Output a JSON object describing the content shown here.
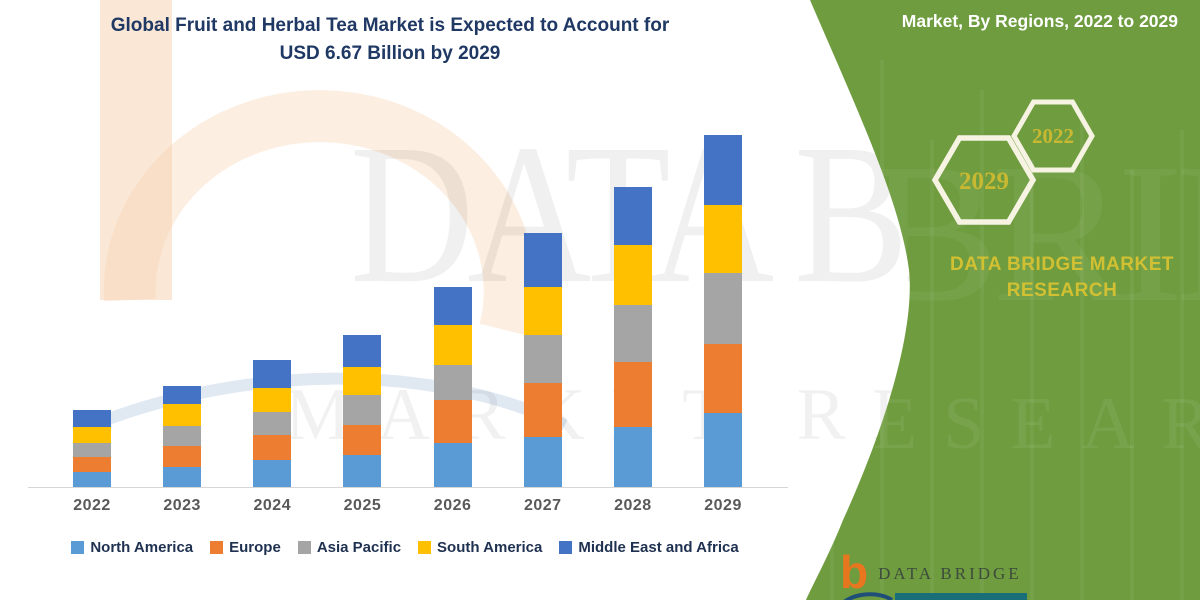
{
  "header": {
    "title_line1": "Global Fruit and Herbal Tea Market is Expected to Account for",
    "title_line2": "USD 6.67 Billion by 2029"
  },
  "side_panel": {
    "heading": "Market, By Regions, 2022 to 2029",
    "hexagons": [
      {
        "label": "2022"
      },
      {
        "label": "2029"
      }
    ],
    "brand": "DATA BRIDGE MARKET RESEARCH",
    "colors": {
      "green": "#6E9C3F",
      "gold": "#D2C033",
      "hex_border": "#F6F3E3",
      "hex_text": "#C9B832"
    }
  },
  "footer_logo": {
    "b_glyph": "b",
    "name": "DATA BRIDGE",
    "orange": "#E8761F",
    "teal": "#1A6E78",
    "navy": "#1F4E79"
  },
  "watermark": {
    "line1": "DATA BRIDGE",
    "line2": "MARKET RESEARCH"
  },
  "chart_data": {
    "type": "bar",
    "stacked": true,
    "title": "Global Fruit and Herbal Tea Market, USD 6.67 Billion by 2029",
    "unit": "USD Billion",
    "values_estimated_from_pixels": true,
    "categories": [
      "2022",
      "2023",
      "2024",
      "2025",
      "2026",
      "2027",
      "2028",
      "2029"
    ],
    "series": [
      {
        "name": "North America",
        "color": "#5B9BD5",
        "values": [
          0.28,
          0.38,
          0.51,
          0.61,
          0.83,
          0.95,
          1.14,
          1.4
        ]
      },
      {
        "name": "Europe",
        "color": "#ED7D31",
        "values": [
          0.28,
          0.4,
          0.47,
          0.57,
          0.81,
          1.02,
          1.23,
          1.31
        ]
      },
      {
        "name": "Asia Pacific",
        "color": "#A5A5A5",
        "values": [
          0.27,
          0.38,
          0.44,
          0.57,
          0.66,
          0.91,
          1.08,
          1.34
        ]
      },
      {
        "name": "South America",
        "color": "#FFC000",
        "values": [
          0.3,
          0.42,
          0.45,
          0.53,
          0.76,
          0.91,
          1.14,
          1.29
        ]
      },
      {
        "name": "Middle East and Africa",
        "color": "#4472C4",
        "values": [
          0.32,
          0.34,
          0.53,
          0.61,
          0.72,
          1.02,
          1.1,
          1.33
        ]
      }
    ],
    "totals": [
      1.45,
      1.92,
      2.4,
      2.89,
      3.78,
      4.81,
      5.69,
      6.67
    ],
    "ylim": [
      0,
      7
    ],
    "grid": false,
    "legend_position": "bottom"
  }
}
